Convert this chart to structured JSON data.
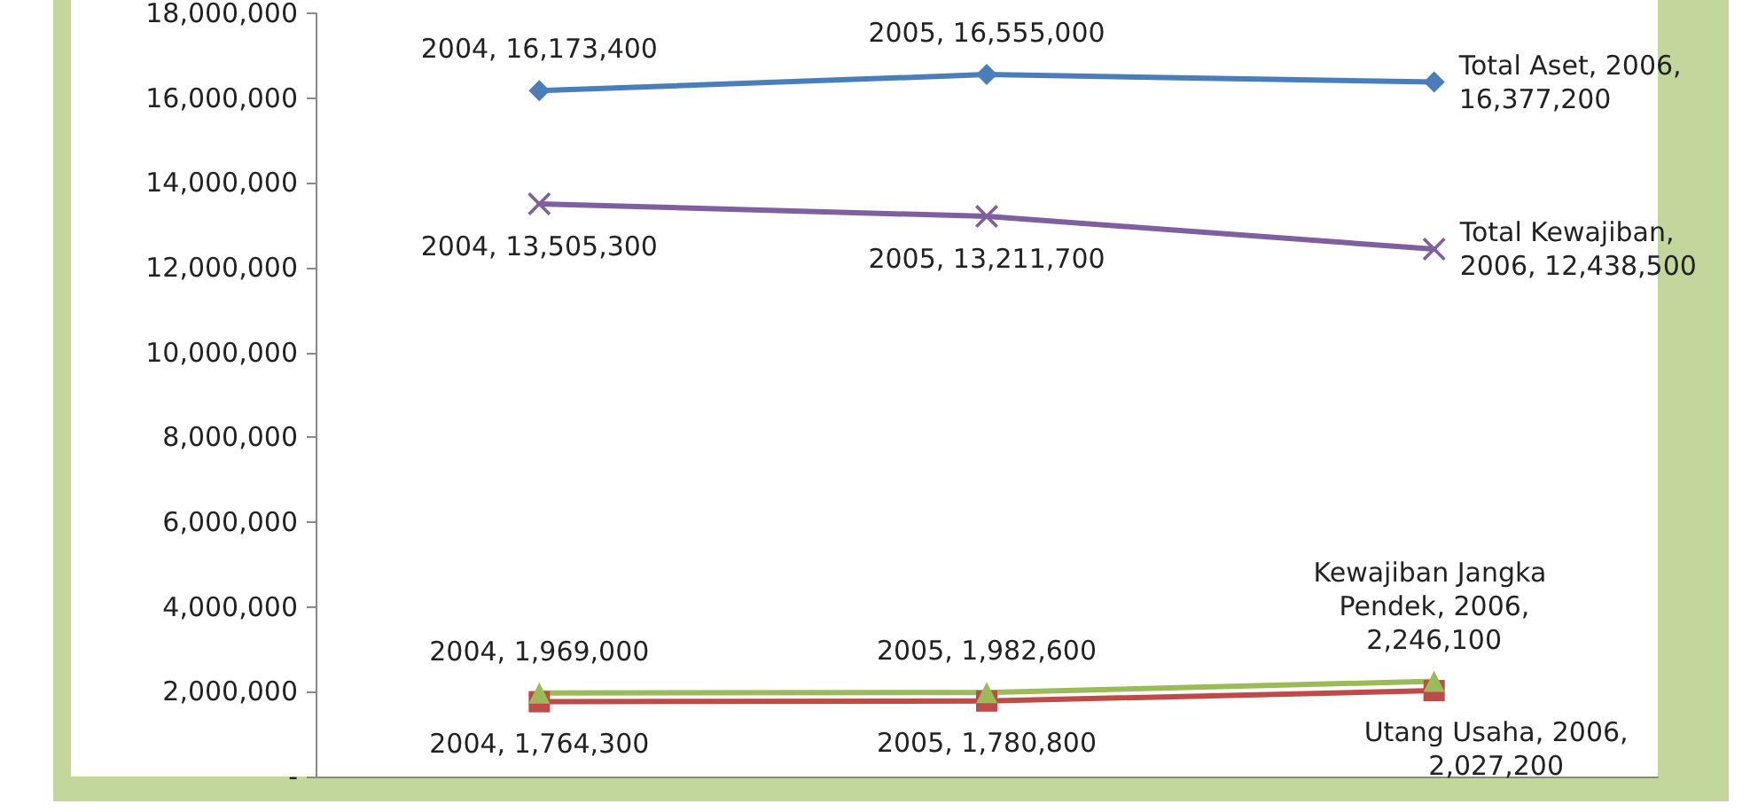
{
  "chart_data": {
    "type": "line",
    "categories": [
      null,
      null,
      null
    ],
    "ylim": [
      0,
      18000000
    ],
    "yticks": [
      {
        "value": 0,
        "label": "-"
      },
      {
        "value": 2000000,
        "label": "2,000,000"
      },
      {
        "value": 4000000,
        "label": "4,000,000"
      },
      {
        "value": 6000000,
        "label": "6,000,000"
      },
      {
        "value": 8000000,
        "label": "8,000,000"
      },
      {
        "value": 10000000,
        "label": "10,000,000"
      },
      {
        "value": 12000000,
        "label": "12,000,000"
      },
      {
        "value": 14000000,
        "label": "14,000,000"
      },
      {
        "value": 16000000,
        "label": "16,000,000"
      },
      {
        "value": 18000000,
        "label": "18,000,000"
      }
    ],
    "grid": false,
    "legend": false,
    "series": [
      {
        "name": "Total Aset",
        "color": "#4a7ebb",
        "marker": "diamond",
        "values": [
          16173400,
          16555000,
          16377200
        ],
        "value_labels": [
          "2004, 16,173,400",
          "2005, 16,555,000",
          ", 2006, 16,377,200"
        ]
      },
      {
        "name": "Total Kewajiban",
        "color": "#7f5f9f",
        "marker": "cross",
        "values": [
          13505300,
          13211700,
          12438500
        ],
        "value_labels": [
          "2004, 13,505,300",
          "2005, 13,211,700",
          ", 2006, 12,438,500"
        ]
      },
      {
        "name": "Utang Usaha",
        "color": "#be4b48",
        "marker": "square",
        "values": [
          1764300,
          1780800,
          2027200
        ],
        "value_labels": [
          "2004, 1,764,300",
          "2005, 1,780,800",
          ", 2006, 2,027,200"
        ]
      },
      {
        "name": "Kewajiban Jangka Pendek",
        "color": "#9bbb59",
        "marker": "triangle",
        "values": [
          1969000,
          1982600,
          2246100
        ],
        "value_labels": [
          "2004, 1,969,000",
          "2005, 1,982,600",
          ", 2006, 2,246,100"
        ]
      }
    ]
  }
}
